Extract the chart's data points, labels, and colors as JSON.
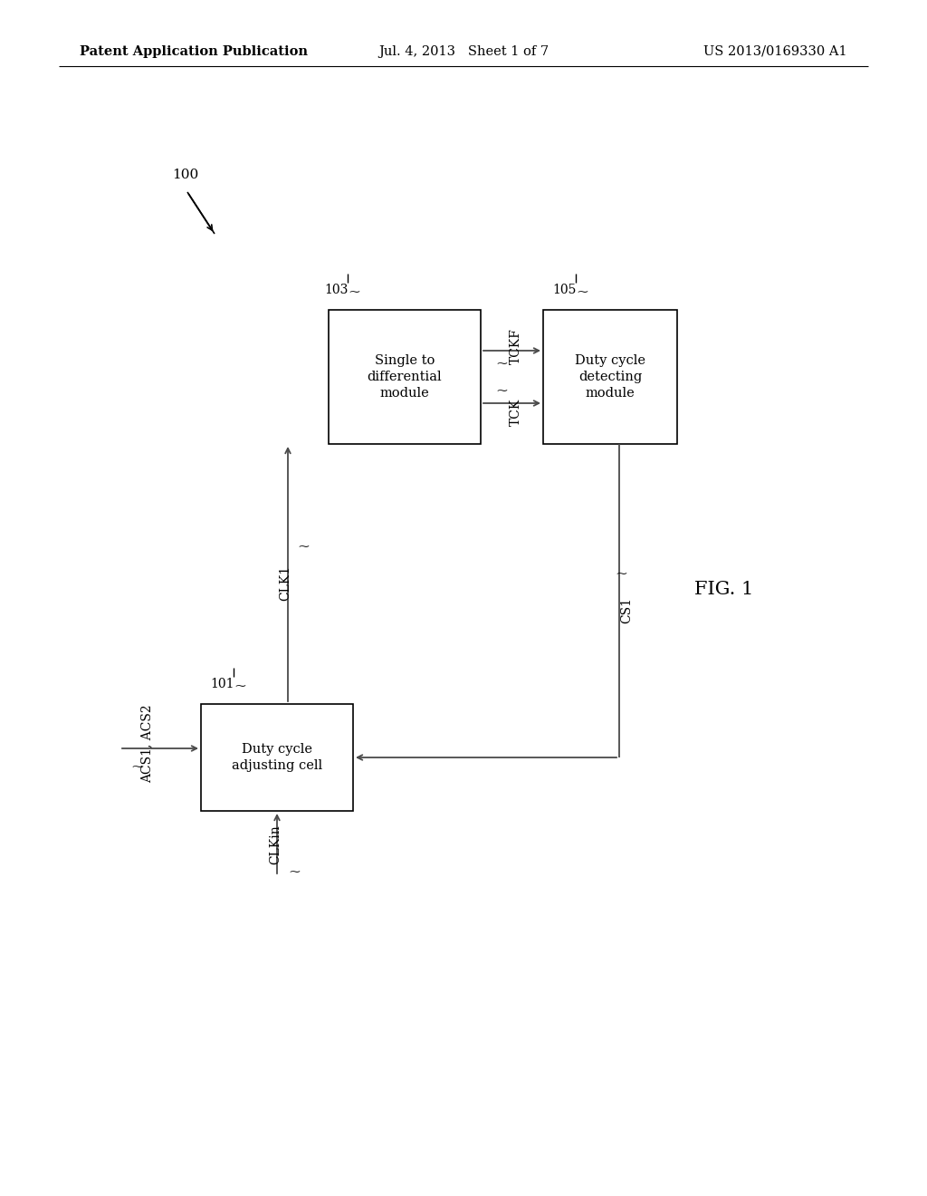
{
  "bg_color": "#ffffff",
  "header_left": "Patent Application Publication",
  "header_mid": "Jul. 4, 2013   Sheet 1 of 7",
  "header_right": "US 2013/0169330 A1",
  "fig_label": "FIG. 1",
  "ref_100": "100",
  "ref_101": "101",
  "ref_103": "103",
  "ref_105": "105",
  "box1_label": "Duty cycle\nadjusting cell",
  "box2_label": "Single to\ndifferential\nmodule",
  "box3_label": "Duty cycle\ndetecting\nmodule",
  "signal_CLKin": "CLKin",
  "signal_ACS": "ACS1, ACS2",
  "signal_CLK1": "CLK1",
  "signal_TCKF": "TCKF",
  "signal_TCK": "TCK",
  "signal_CS1": "CS1",
  "line_color": "#4a4a4a",
  "text_color": "#000000",
  "box_edge_color": "#000000",
  "font_size_header": 10.5,
  "font_size_body": 10,
  "font_size_signal": 10,
  "font_size_ref": 10,
  "font_size_fig": 15
}
